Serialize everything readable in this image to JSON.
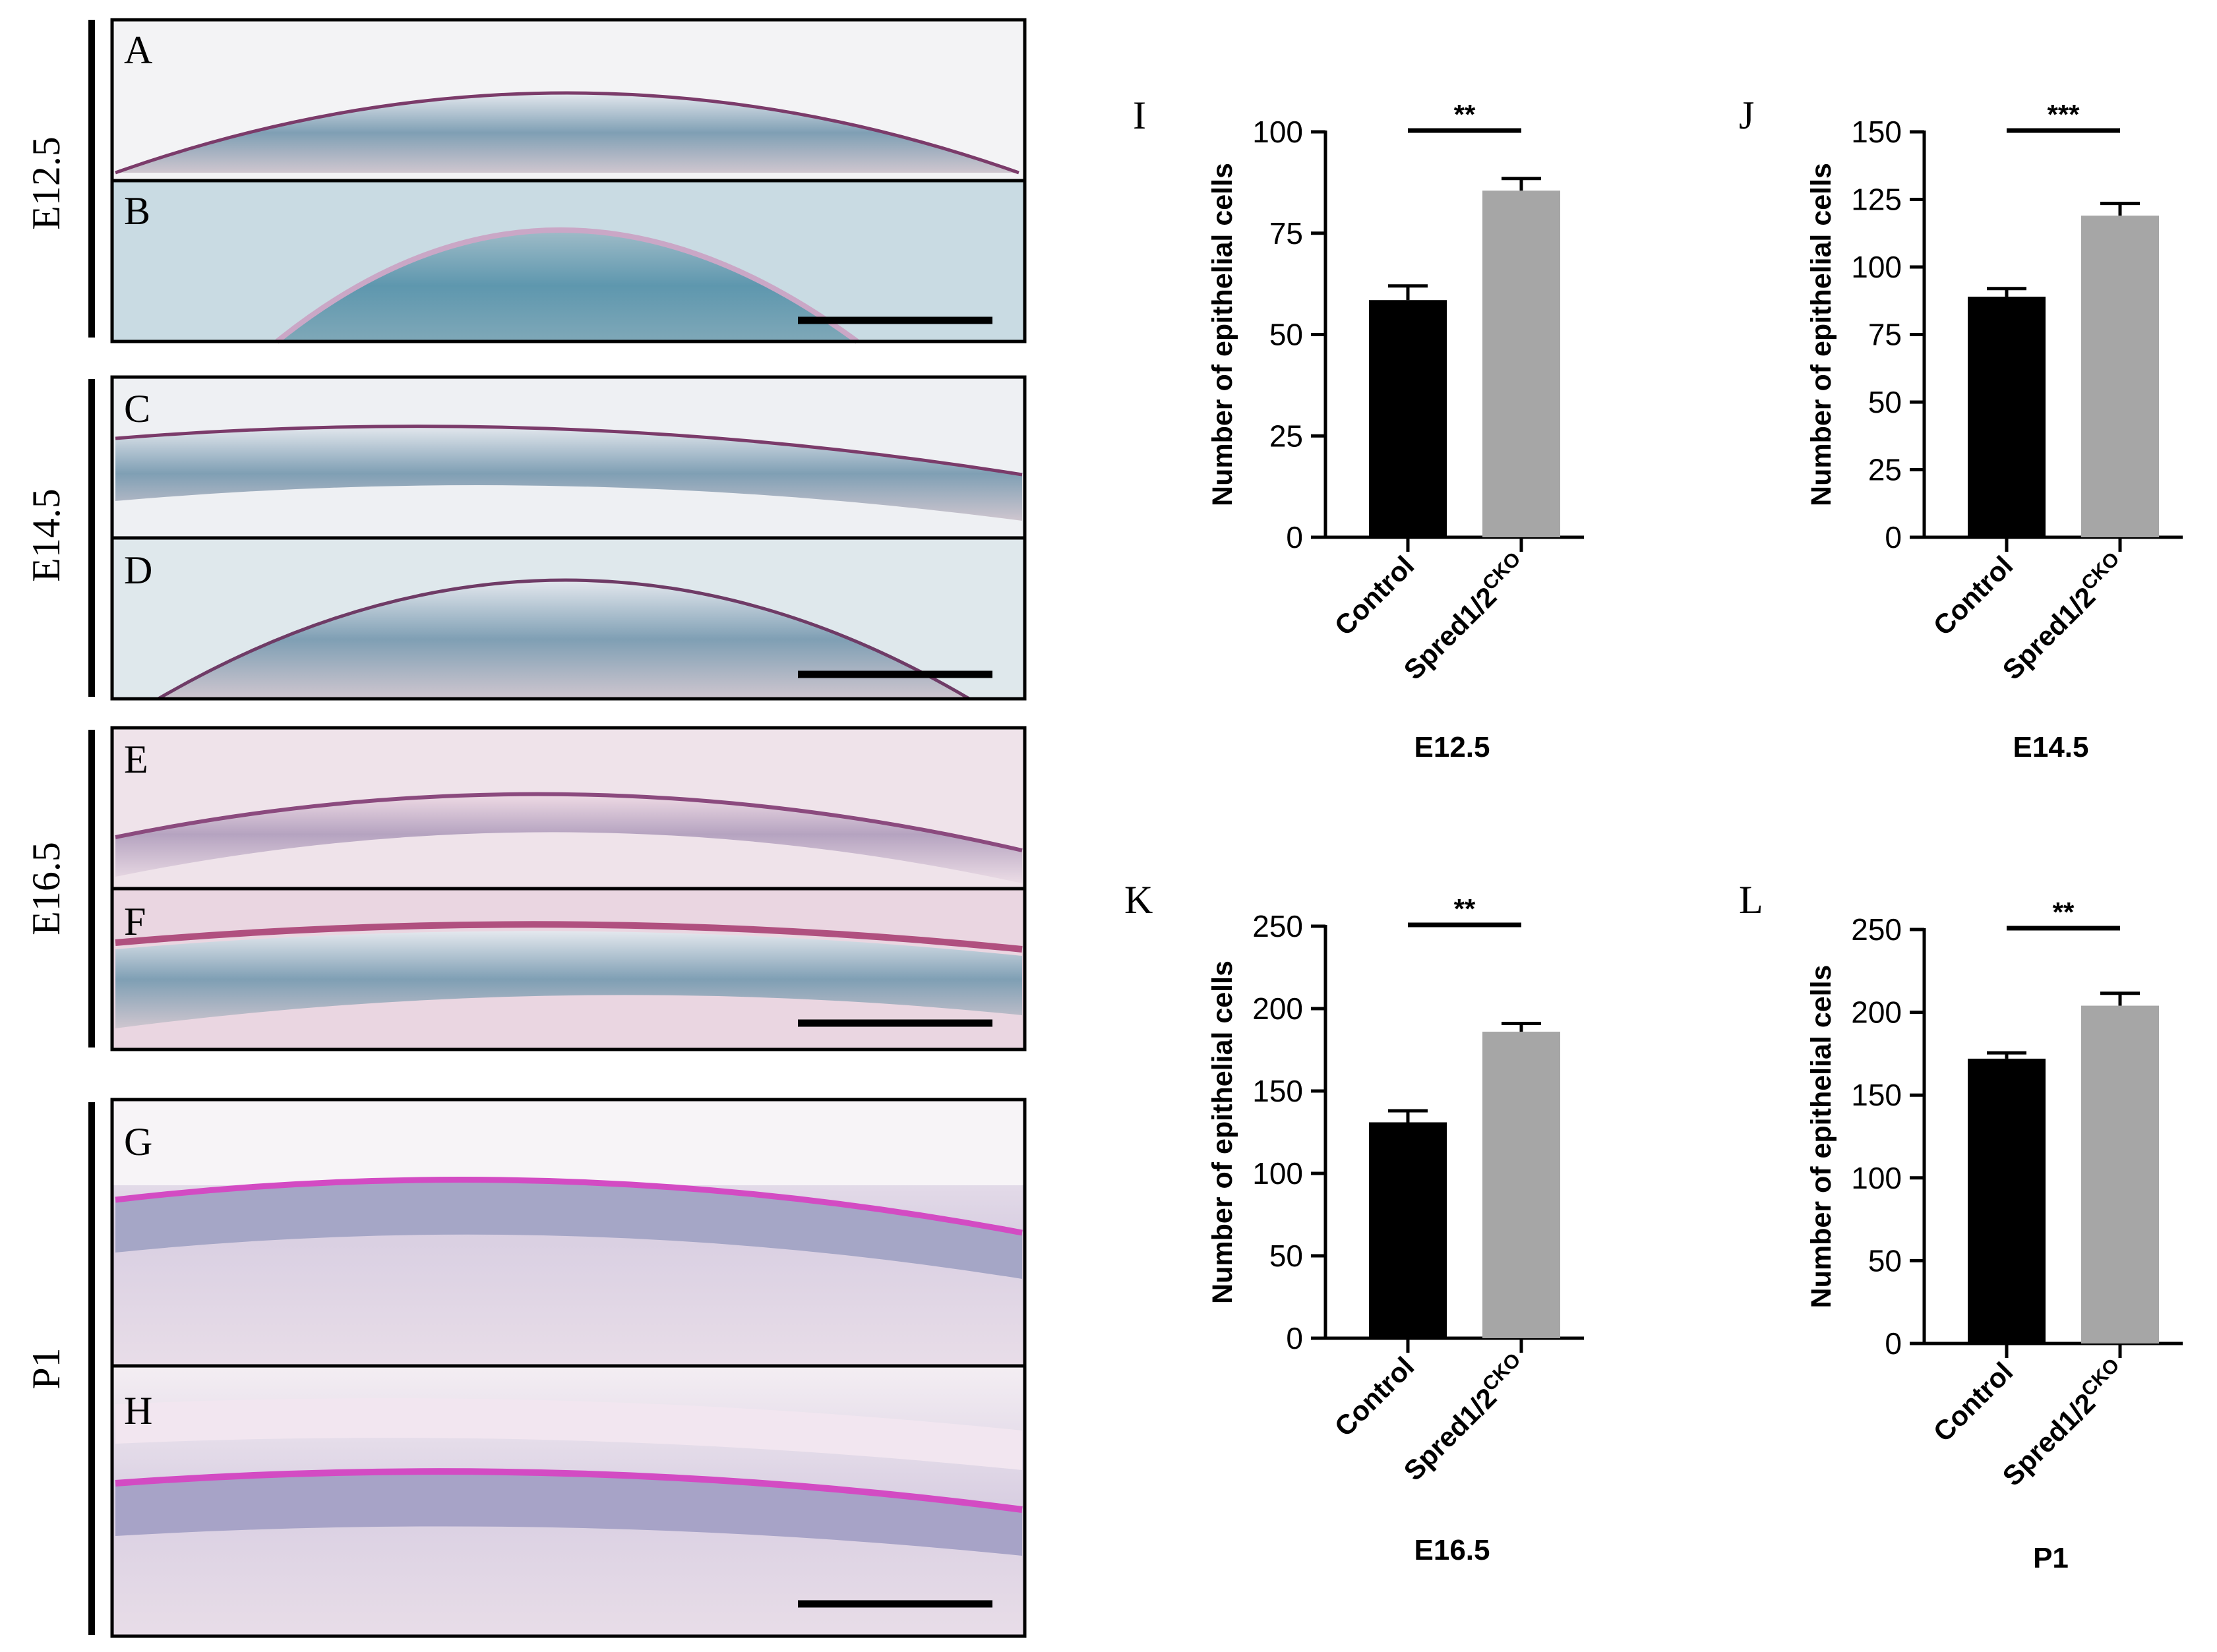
{
  "micrographs": {
    "groups": [
      {
        "stage": "E12.5",
        "panels": [
          "A",
          "B"
        ]
      },
      {
        "stage": "E14.5",
        "panels": [
          "C",
          "D"
        ]
      },
      {
        "stage": "E16.5",
        "panels": [
          "E",
          "F"
        ]
      },
      {
        "stage": "P1",
        "panels": [
          "G",
          "H"
        ]
      }
    ]
  },
  "chart_data": [
    {
      "panel": "I",
      "type": "bar",
      "title": "E12.5",
      "ylabel": "Number of epithelial cells",
      "categories": [
        "Control",
        "Spred1/2"
      ],
      "superscript": [
        "",
        "CKO"
      ],
      "values": [
        58.5,
        85.5
      ],
      "errors": [
        3.5,
        3.0
      ],
      "ylim": [
        0,
        100
      ],
      "yticks": [
        0,
        25,
        50,
        75,
        100
      ],
      "significance": "**",
      "colors": [
        "#000000",
        "#a6a6a6"
      ]
    },
    {
      "panel": "J",
      "type": "bar",
      "title": "E14.5",
      "ylabel": "Number of epithelial cells",
      "categories": [
        "Control",
        "Spred1/2"
      ],
      "superscript": [
        "",
        "CKO"
      ],
      "values": [
        89,
        119
      ],
      "errors": [
        3,
        4.5
      ],
      "ylim": [
        0,
        150
      ],
      "yticks": [
        0,
        25,
        50,
        75,
        100,
        125,
        150
      ],
      "significance": "***",
      "colors": [
        "#000000",
        "#a6a6a6"
      ]
    },
    {
      "panel": "K",
      "type": "bar",
      "title": "E16.5",
      "ylabel": "Number of epithelial cells",
      "categories": [
        "Control",
        "Spred1/2"
      ],
      "superscript": [
        "",
        "CKO"
      ],
      "values": [
        131,
        186
      ],
      "errors": [
        7,
        5
      ],
      "ylim": [
        0,
        250
      ],
      "yticks": [
        0,
        50,
        100,
        150,
        200,
        250
      ],
      "significance": "**",
      "colors": [
        "#000000",
        "#a6a6a6"
      ]
    },
    {
      "panel": "L",
      "type": "bar",
      "title": "P1",
      "ylabel": "Number of epithelial cells",
      "categories": [
        "Control",
        "Spred1/2"
      ],
      "superscript": [
        "",
        "CKO"
      ],
      "values": [
        172,
        204
      ],
      "errors": [
        3.5,
        7.5
      ],
      "ylim": [
        0,
        250
      ],
      "yticks": [
        0,
        50,
        100,
        150,
        200,
        250
      ],
      "significance": "**",
      "colors": [
        "#000000",
        "#a6a6a6"
      ]
    }
  ]
}
